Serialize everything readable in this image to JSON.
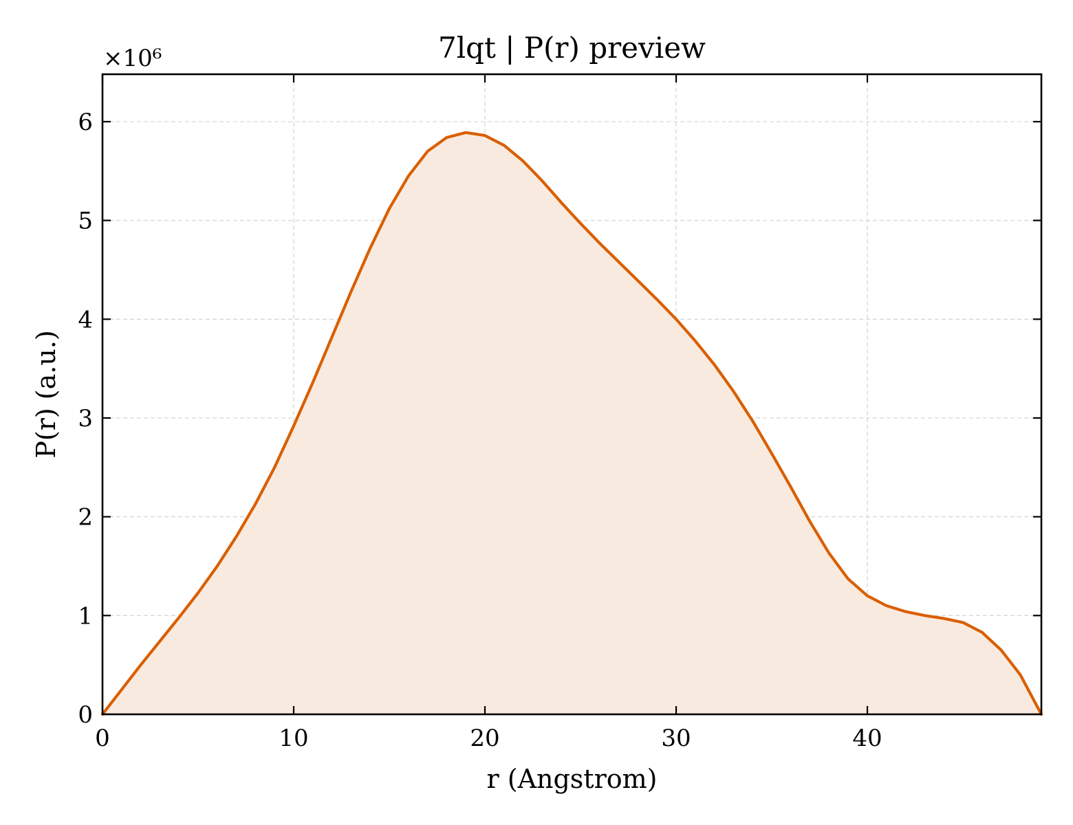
{
  "chart_data": {
    "type": "area",
    "title": "7lqt | P(r) preview",
    "xlabel": "r (Angstrom)",
    "ylabel": "P(r) (a.u.)",
    "y_multiplier_label": "×10⁶",
    "xlim": [
      0,
      49.1
    ],
    "ylim": [
      0,
      6.48
    ],
    "xticks": [
      0,
      10,
      20,
      30,
      40
    ],
    "yticks": [
      0,
      1,
      2,
      3,
      4,
      5,
      6
    ],
    "grid": true,
    "legend": "none",
    "line_color": "#d95f02",
    "fill_color": "#f9eadf",
    "series": [
      {
        "x": [
          0,
          1,
          2,
          3,
          4,
          5,
          6,
          7,
          8,
          9,
          10,
          11,
          12,
          13,
          14,
          15,
          16,
          17,
          18,
          19,
          20,
          21,
          22,
          23,
          24,
          25,
          26,
          27,
          28,
          29,
          30,
          31,
          32,
          33,
          34,
          35,
          36,
          37,
          38,
          39,
          40,
          41,
          42,
          43,
          44,
          45,
          46,
          47,
          48,
          49.1
        ],
        "y": [
          0,
          0.25,
          0.5,
          0.74,
          0.98,
          1.23,
          1.5,
          1.8,
          2.13,
          2.5,
          2.92,
          3.36,
          3.82,
          4.28,
          4.72,
          5.12,
          5.45,
          5.7,
          5.84,
          5.89,
          5.86,
          5.76,
          5.6,
          5.4,
          5.18,
          4.97,
          4.77,
          4.58,
          4.39,
          4.2,
          4.0,
          3.78,
          3.54,
          3.27,
          2.97,
          2.64,
          2.3,
          1.95,
          1.63,
          1.37,
          1.2,
          1.1,
          1.04,
          1.0,
          0.97,
          0.93,
          0.83,
          0.65,
          0.4,
          0.0
        ]
      }
    ]
  }
}
